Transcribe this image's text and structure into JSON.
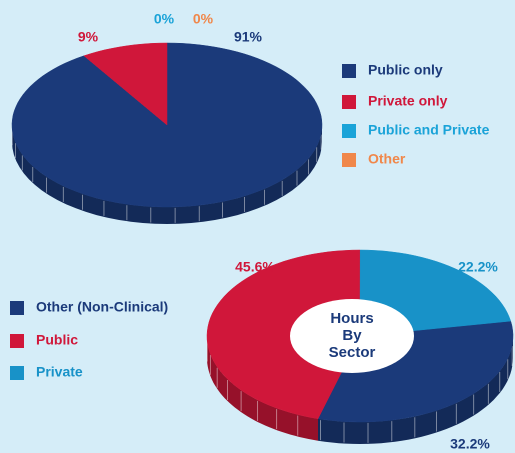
{
  "chart_data": [
    {
      "type": "pie",
      "categories": [
        "Public only",
        "Private only",
        "Public and Private",
        "Other"
      ],
      "values": [
        91,
        9,
        0,
        0
      ],
      "value_labels": [
        "91%",
        "9%",
        "0%",
        "0%"
      ],
      "colors": [
        "#1b3a7a",
        "#d0173a",
        "#1aa3d8",
        "#f0874a"
      ],
      "legend": "right"
    },
    {
      "type": "donut",
      "center_label": "Hours By Sector",
      "categories": [
        "Other (Non-Clinical)",
        "Public",
        "Private"
      ],
      "values": [
        32.2,
        45.6,
        22.2
      ],
      "value_labels": [
        "32.2%",
        "45.6%",
        "22.2%"
      ],
      "colors": [
        "#1b3a7a",
        "#d0173a",
        "#1892c8"
      ],
      "legend": "left"
    }
  ]
}
